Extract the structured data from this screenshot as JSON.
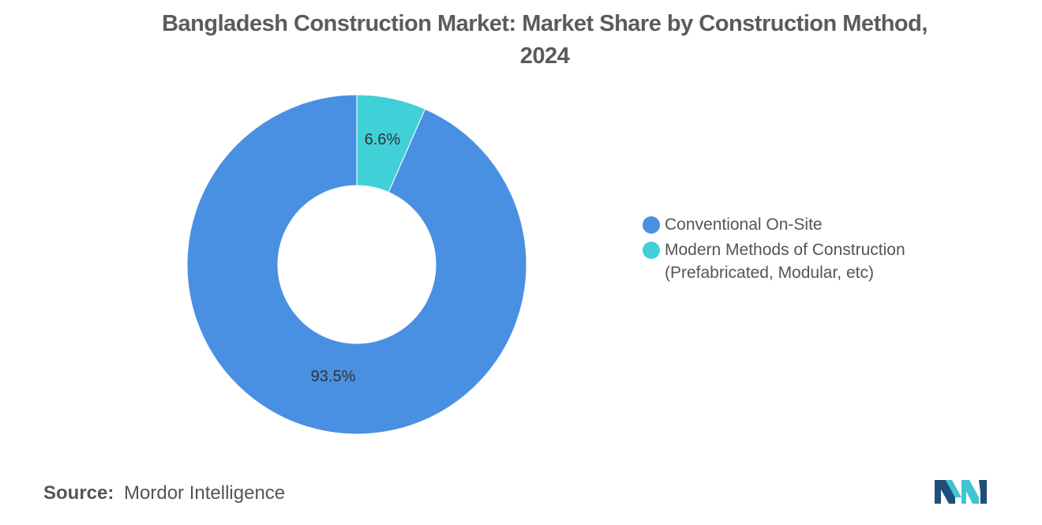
{
  "title": {
    "line1": "Bangladesh Construction Market: Market Share by Construction Method,",
    "line2": "2024"
  },
  "chart_data": {
    "type": "pie",
    "donut": true,
    "title": "Bangladesh Construction Market: Market Share by Construction Method, 2024",
    "slices": [
      {
        "label": "Conventional On-Site",
        "value": 93.5,
        "display": "93.5%",
        "color": "#4a90e2"
      },
      {
        "label": "Modern Methods of Construction (Prefabricated, Modular, etc)",
        "value": 6.6,
        "display": "6.6%",
        "color": "#40d0d8"
      }
    ],
    "legend_position": "right"
  },
  "legend": {
    "items": [
      {
        "label": "Conventional On-Site",
        "color": "#4a90e2"
      },
      {
        "label_line1": "Modern Methods of Construction",
        "label_line2": "(Prefabricated, Modular, etc)",
        "color": "#40d0d8"
      }
    ]
  },
  "source": {
    "label": "Source:",
    "text": "Mordor Intelligence"
  },
  "logo": {
    "icon": "mordor-intelligence-logo",
    "colors": [
      "#1e4f7a",
      "#3fc4d4"
    ]
  }
}
